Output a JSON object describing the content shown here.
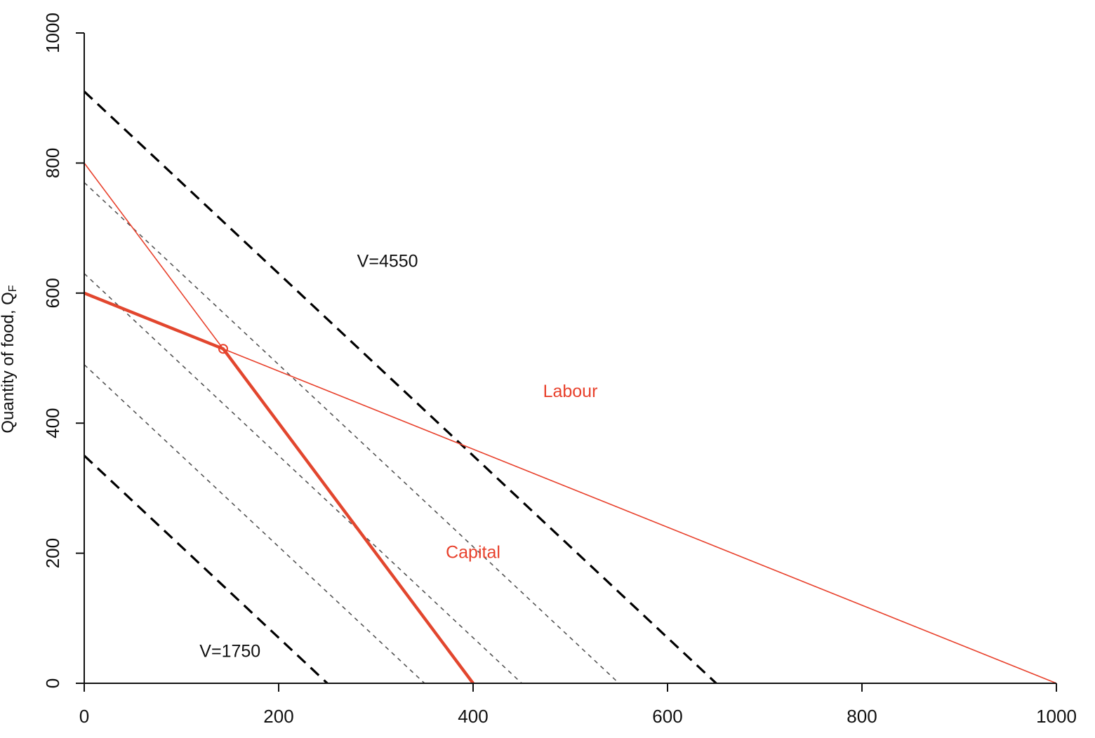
{
  "chart_data": {
    "type": "line",
    "title": "",
    "xlabel": "",
    "ylabel": "Quantity of food, Q",
    "ylabel_subscript": "F",
    "xlim": [
      0,
      1000
    ],
    "ylim": [
      0,
      1000
    ],
    "x_ticks": [
      0,
      200,
      400,
      600,
      800,
      1000
    ],
    "y_ticks": [
      0,
      200,
      400,
      600,
      800,
      1000
    ],
    "grid": false,
    "series": [
      {
        "style": "black-dashed-thick",
        "color": "#000000",
        "points": [
          [
            0,
            910
          ],
          [
            650,
            0
          ]
        ]
      },
      {
        "style": "black-dashed-thick",
        "color": "#000000",
        "points": [
          [
            0,
            350
          ],
          [
            250,
            0
          ]
        ]
      },
      {
        "style": "grey-dashed-thin",
        "color": "#555555",
        "points": [
          [
            0,
            770
          ],
          [
            550,
            0
          ]
        ]
      },
      {
        "style": "grey-dashed-thin",
        "color": "#555555",
        "points": [
          [
            0,
            630
          ],
          [
            450,
            0
          ]
        ]
      },
      {
        "style": "grey-dashed-thin",
        "color": "#555555",
        "points": [
          [
            0,
            490
          ],
          [
            350,
            0
          ]
        ]
      },
      {
        "style": "red-thin",
        "color": "#e8412c",
        "points": [
          [
            0,
            800
          ],
          [
            400,
            0
          ]
        ]
      },
      {
        "style": "red-thin",
        "color": "#e8412c",
        "points": [
          [
            0,
            600
          ],
          [
            1000,
            0
          ]
        ]
      },
      {
        "style": "red-thick",
        "color": "#e2462e",
        "points": [
          [
            0,
            600
          ],
          [
            142.9,
            514.3
          ],
          [
            400,
            0
          ]
        ]
      }
    ],
    "markers": [
      {
        "x": 142.9,
        "y": 514.3,
        "shape": "open-circle",
        "color": "#e8412c"
      }
    ],
    "annotations": [
      {
        "text": "V=4550",
        "x": 312,
        "y": 650,
        "color": "#111111"
      },
      {
        "text": "V=1750",
        "x": 150,
        "y": 50,
        "color": "#111111"
      },
      {
        "text": "Labour",
        "x": 500,
        "y": 450,
        "color": "#e8412c"
      },
      {
        "text": "Capital",
        "x": 400,
        "y": 202,
        "color": "#e8412c"
      }
    ]
  }
}
